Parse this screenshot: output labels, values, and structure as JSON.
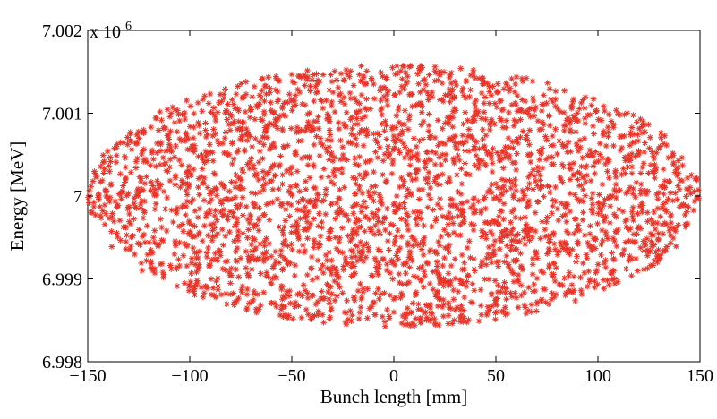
{
  "chart_data": {
    "type": "scatter",
    "title": "",
    "xlabel": "Bunch length [mm]",
    "ylabel": "Energy [MeV]",
    "y_multiplier_base": "x 10",
    "y_multiplier_exponent": "6",
    "xlim": [
      -150,
      150
    ],
    "ylim": [
      6.998,
      7.002
    ],
    "x_ticks": [
      -150,
      -100,
      -50,
      0,
      50,
      100,
      150
    ],
    "x_tick_labels": [
      "−150",
      "−100",
      "−50",
      "0",
      "50",
      "100",
      "150"
    ],
    "y_ticks": [
      6.998,
      6.999,
      7.0,
      7.001,
      7.002
    ],
    "y_tick_labels": [
      "6.998",
      "6.999",
      "7",
      "7.001",
      "7.002"
    ],
    "grid": false,
    "legend": "none",
    "marker": "asterisk",
    "marker_color": "#e8352a",
    "distribution": {
      "shape": "uniform-ellipse",
      "x_center": 0,
      "x_half_width": 150,
      "y_center": 7.0,
      "y_half_height": 0.00158,
      "count": 3000
    }
  }
}
